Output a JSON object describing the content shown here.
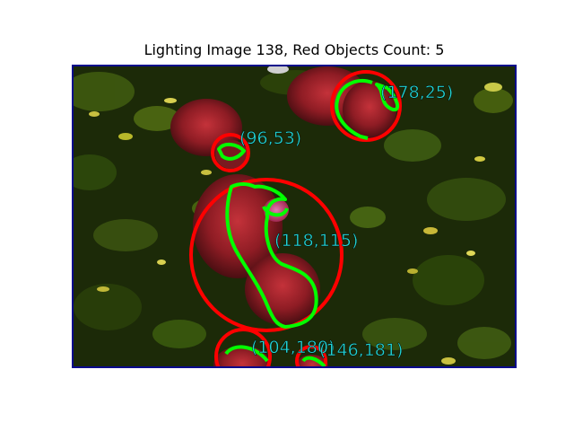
{
  "figure": {
    "title": "Lighting Image 138, Red Objects Count: 5"
  },
  "image": {
    "description_colors": {
      "background_dark": "#1a2208",
      "foliage_green": "#3c5a12",
      "fruit_red": "#8e1c24",
      "circle_red": "#ff0000",
      "contour_green": "#00ff00",
      "label_cyan": "#22d3d3",
      "frame_blue": "#0a0a8c"
    },
    "detections": [
      {
        "label": "(178,25)"
      },
      {
        "label": "(96,53)"
      },
      {
        "label": "(118,115)"
      },
      {
        "label": "(104,180)"
      },
      {
        "label": "(146,181)"
      }
    ]
  }
}
